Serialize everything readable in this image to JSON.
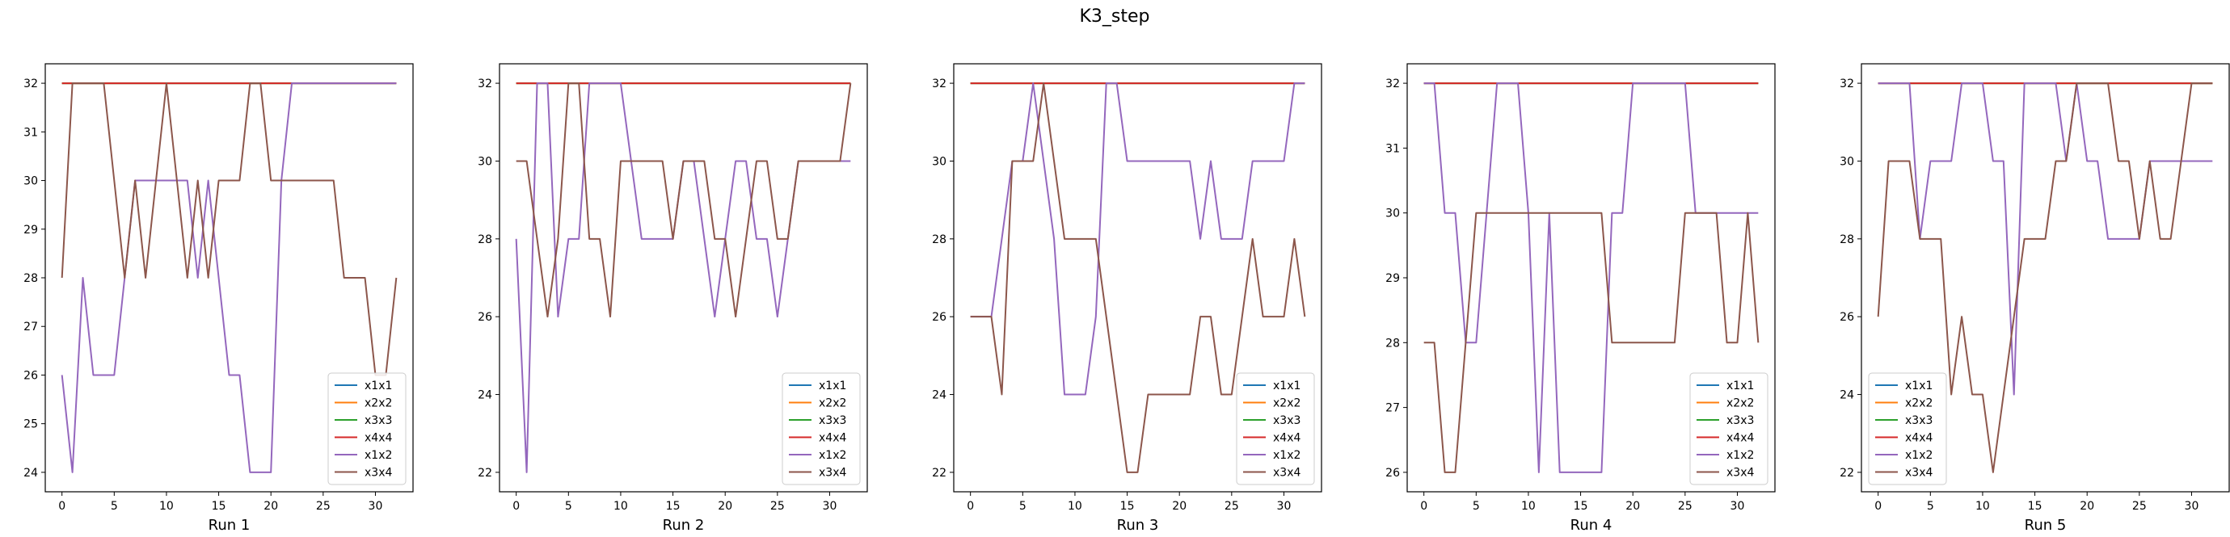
{
  "figure": {
    "title": "K3_step",
    "colors": {
      "x1x1": "#1f77b4",
      "x2x2": "#ff7f0e",
      "x3x3": "#2ca02c",
      "x4x4": "#d62728",
      "x1x2": "#9467bd",
      "x3x4": "#8c564b"
    }
  },
  "chart_data": [
    {
      "type": "line",
      "xlabel": "Run 1",
      "ylabel": "",
      "xlim": [
        -1.6,
        33.6
      ],
      "ylim": [
        23.6,
        32.4
      ],
      "xticks": [
        0,
        5,
        10,
        15,
        20,
        25,
        30
      ],
      "yticks": [
        24,
        25,
        26,
        27,
        28,
        29,
        30,
        31,
        32
      ],
      "legend_position": "lower-right",
      "series": [
        {
          "name": "x1x1",
          "x": [
            0,
            32
          ],
          "values": [
            32,
            32
          ]
        },
        {
          "name": "x2x2",
          "x": [
            0,
            32
          ],
          "values": [
            32,
            32
          ]
        },
        {
          "name": "x3x3",
          "x": [
            0,
            32
          ],
          "values": [
            32,
            32
          ]
        },
        {
          "name": "x4x4",
          "x": [
            0,
            32
          ],
          "values": [
            32,
            32
          ]
        },
        {
          "name": "x1x2",
          "x": [
            0,
            1,
            2,
            3,
            4,
            5,
            6,
            7,
            8,
            9,
            10,
            11,
            12,
            13,
            14,
            15,
            16,
            17,
            18,
            19,
            20,
            21,
            22,
            23,
            24,
            25,
            26,
            27,
            28,
            29,
            30,
            31,
            32
          ],
          "values": [
            26,
            24,
            28,
            26,
            26,
            26,
            28,
            30,
            30,
            30,
            30,
            30,
            30,
            28,
            30,
            28,
            26,
            26,
            24,
            24,
            24,
            30,
            32,
            32,
            32,
            32,
            32,
            32,
            32,
            32,
            32,
            32,
            32
          ]
        },
        {
          "name": "x3x4",
          "x": [
            0,
            1,
            2,
            3,
            4,
            5,
            6,
            7,
            8,
            9,
            10,
            11,
            12,
            13,
            14,
            15,
            16,
            17,
            18,
            19,
            20,
            21,
            22,
            23,
            24,
            25,
            26,
            27,
            28,
            29,
            30,
            31,
            32
          ],
          "values": [
            28,
            32,
            32,
            32,
            32,
            30,
            28,
            30,
            28,
            30,
            32,
            30,
            28,
            30,
            28,
            30,
            30,
            30,
            32,
            32,
            30,
            30,
            30,
            30,
            30,
            30,
            30,
            28,
            28,
            28,
            26,
            26,
            28
          ]
        }
      ]
    },
    {
      "type": "line",
      "xlabel": "Run 2",
      "ylabel": "",
      "xlim": [
        -1.6,
        33.6
      ],
      "ylim": [
        21.5,
        32.5
      ],
      "xticks": [
        0,
        5,
        10,
        15,
        20,
        25,
        30
      ],
      "yticks": [
        22,
        24,
        26,
        28,
        30,
        32
      ],
      "legend_position": "lower-right",
      "series": [
        {
          "name": "x1x1",
          "x": [
            0,
            32
          ],
          "values": [
            32,
            32
          ]
        },
        {
          "name": "x2x2",
          "x": [
            0,
            32
          ],
          "values": [
            32,
            32
          ]
        },
        {
          "name": "x3x3",
          "x": [
            0,
            32
          ],
          "values": [
            32,
            32
          ]
        },
        {
          "name": "x4x4",
          "x": [
            0,
            32
          ],
          "values": [
            32,
            32
          ]
        },
        {
          "name": "x1x2",
          "x": [
            0,
            1,
            2,
            3,
            4,
            5,
            6,
            7,
            8,
            9,
            10,
            11,
            12,
            13,
            14,
            15,
            16,
            17,
            18,
            19,
            20,
            21,
            22,
            23,
            24,
            25,
            26,
            27,
            28,
            29,
            30,
            31,
            32
          ],
          "values": [
            28,
            22,
            32,
            32,
            26,
            28,
            28,
            32,
            32,
            32,
            32,
            30,
            28,
            28,
            28,
            28,
            30,
            30,
            28,
            26,
            28,
            30,
            30,
            28,
            28,
            26,
            28,
            30,
            30,
            30,
            30,
            30,
            30
          ]
        },
        {
          "name": "x3x4",
          "x": [
            0,
            1,
            2,
            3,
            4,
            5,
            6,
            7,
            8,
            9,
            10,
            11,
            12,
            13,
            14,
            15,
            16,
            17,
            18,
            19,
            20,
            21,
            22,
            23,
            24,
            25,
            26,
            27,
            28,
            29,
            30,
            31,
            32
          ],
          "values": [
            30,
            30,
            28,
            26,
            28,
            32,
            32,
            28,
            28,
            26,
            30,
            30,
            30,
            30,
            30,
            28,
            30,
            30,
            30,
            28,
            28,
            26,
            28,
            30,
            30,
            28,
            28,
            30,
            30,
            30,
            30,
            30,
            32
          ]
        }
      ]
    },
    {
      "type": "line",
      "xlabel": "Run 3",
      "ylabel": "",
      "xlim": [
        -1.6,
        33.6
      ],
      "ylim": [
        21.5,
        32.5
      ],
      "xticks": [
        0,
        5,
        10,
        15,
        20,
        25,
        30
      ],
      "yticks": [
        22,
        24,
        26,
        28,
        30,
        32
      ],
      "legend_position": "lower-right",
      "series": [
        {
          "name": "x1x1",
          "x": [
            0,
            32
          ],
          "values": [
            32,
            32
          ]
        },
        {
          "name": "x2x2",
          "x": [
            0,
            32
          ],
          "values": [
            32,
            32
          ]
        },
        {
          "name": "x3x3",
          "x": [
            0,
            32
          ],
          "values": [
            32,
            32
          ]
        },
        {
          "name": "x4x4",
          "x": [
            0,
            32
          ],
          "values": [
            32,
            32
          ]
        },
        {
          "name": "x1x2",
          "x": [
            0,
            1,
            2,
            3,
            4,
            5,
            6,
            7,
            8,
            9,
            10,
            11,
            12,
            13,
            14,
            15,
            16,
            17,
            18,
            19,
            20,
            21,
            22,
            23,
            24,
            25,
            26,
            27,
            28,
            29,
            30,
            31,
            32
          ],
          "values": [
            26,
            26,
            26,
            28,
            30,
            30,
            32,
            30,
            28,
            24,
            24,
            24,
            26,
            32,
            32,
            30,
            30,
            30,
            30,
            30,
            30,
            30,
            28,
            30,
            28,
            28,
            28,
            30,
            30,
            30,
            30,
            32,
            32
          ]
        },
        {
          "name": "x3x4",
          "x": [
            0,
            1,
            2,
            3,
            4,
            5,
            6,
            7,
            8,
            9,
            10,
            11,
            12,
            13,
            14,
            15,
            16,
            17,
            18,
            19,
            20,
            21,
            22,
            23,
            24,
            25,
            26,
            27,
            28,
            29,
            30,
            31,
            32
          ],
          "values": [
            26,
            26,
            26,
            24,
            30,
            30,
            30,
            32,
            30,
            28,
            28,
            28,
            28,
            26,
            24,
            22,
            22,
            24,
            24,
            24,
            24,
            24,
            26,
            26,
            24,
            24,
            26,
            28,
            26,
            26,
            26,
            28,
            26
          ]
        }
      ]
    },
    {
      "type": "line",
      "xlabel": "Run 4",
      "ylabel": "",
      "xlim": [
        -1.6,
        33.6
      ],
      "ylim": [
        25.7,
        32.3
      ],
      "xticks": [
        0,
        5,
        10,
        15,
        20,
        25,
        30
      ],
      "yticks": [
        26,
        27,
        28,
        29,
        30,
        31,
        32
      ],
      "legend_position": "lower-right",
      "series": [
        {
          "name": "x1x1",
          "x": [
            0,
            32
          ],
          "values": [
            32,
            32
          ]
        },
        {
          "name": "x2x2",
          "x": [
            0,
            32
          ],
          "values": [
            32,
            32
          ]
        },
        {
          "name": "x3x3",
          "x": [
            0,
            32
          ],
          "values": [
            32,
            32
          ]
        },
        {
          "name": "x4x4",
          "x": [
            0,
            32
          ],
          "values": [
            32,
            32
          ]
        },
        {
          "name": "x1x2",
          "x": [
            0,
            1,
            2,
            3,
            4,
            5,
            6,
            7,
            8,
            9,
            10,
            11,
            12,
            13,
            14,
            15,
            16,
            17,
            18,
            19,
            20,
            21,
            22,
            23,
            24,
            25,
            26,
            27,
            28,
            29,
            30,
            31,
            32
          ],
          "values": [
            32,
            32,
            30,
            30,
            28,
            28,
            30,
            32,
            32,
            32,
            30,
            26,
            30,
            26,
            26,
            26,
            26,
            26,
            30,
            30,
            32,
            32,
            32,
            32,
            32,
            32,
            30,
            30,
            30,
            30,
            30,
            30,
            30
          ]
        },
        {
          "name": "x3x4",
          "x": [
            0,
            1,
            2,
            3,
            4,
            5,
            6,
            7,
            8,
            9,
            10,
            11,
            12,
            13,
            14,
            15,
            16,
            17,
            18,
            19,
            20,
            21,
            22,
            23,
            24,
            25,
            26,
            27,
            28,
            29,
            30,
            31,
            32
          ],
          "values": [
            28,
            28,
            26,
            26,
            28,
            30,
            30,
            30,
            30,
            30,
            30,
            30,
            30,
            30,
            30,
            30,
            30,
            30,
            28,
            28,
            28,
            28,
            28,
            28,
            28,
            30,
            30,
            30,
            30,
            28,
            28,
            30,
            28
          ]
        }
      ]
    },
    {
      "type": "line",
      "xlabel": "Run 5",
      "ylabel": "",
      "xlim": [
        -1.6,
        33.6
      ],
      "ylim": [
        21.5,
        32.5
      ],
      "xticks": [
        0,
        5,
        10,
        15,
        20,
        25,
        30
      ],
      "yticks": [
        22,
        24,
        26,
        28,
        30,
        32
      ],
      "legend_position": "lower-left",
      "series": [
        {
          "name": "x1x1",
          "x": [
            0,
            32
          ],
          "values": [
            32,
            32
          ]
        },
        {
          "name": "x2x2",
          "x": [
            0,
            32
          ],
          "values": [
            32,
            32
          ]
        },
        {
          "name": "x3x3",
          "x": [
            0,
            32
          ],
          "values": [
            32,
            32
          ]
        },
        {
          "name": "x4x4",
          "x": [
            0,
            32
          ],
          "values": [
            32,
            32
          ]
        },
        {
          "name": "x1x2",
          "x": [
            0,
            1,
            2,
            3,
            4,
            5,
            6,
            7,
            8,
            9,
            10,
            11,
            12,
            13,
            14,
            15,
            16,
            17,
            18,
            19,
            20,
            21,
            22,
            23,
            24,
            25,
            26,
            27,
            28,
            29,
            30,
            31,
            32
          ],
          "values": [
            32,
            32,
            32,
            32,
            28,
            30,
            30,
            30,
            32,
            32,
            32,
            30,
            30,
            24,
            32,
            32,
            32,
            32,
            30,
            32,
            30,
            30,
            28,
            28,
            28,
            28,
            30,
            30,
            30,
            30,
            30,
            30,
            30
          ]
        },
        {
          "name": "x3x4",
          "x": [
            0,
            1,
            2,
            3,
            4,
            5,
            6,
            7,
            8,
            9,
            10,
            11,
            12,
            13,
            14,
            15,
            16,
            17,
            18,
            19,
            20,
            21,
            22,
            23,
            24,
            25,
            26,
            27,
            28,
            29,
            30,
            31,
            32
          ],
          "values": [
            26,
            30,
            30,
            30,
            28,
            28,
            28,
            24,
            26,
            24,
            24,
            22,
            24,
            26,
            28,
            28,
            28,
            30,
            30,
            32,
            32,
            32,
            32,
            30,
            30,
            28,
            30,
            28,
            28,
            30,
            32,
            32,
            32
          ]
        }
      ]
    }
  ]
}
